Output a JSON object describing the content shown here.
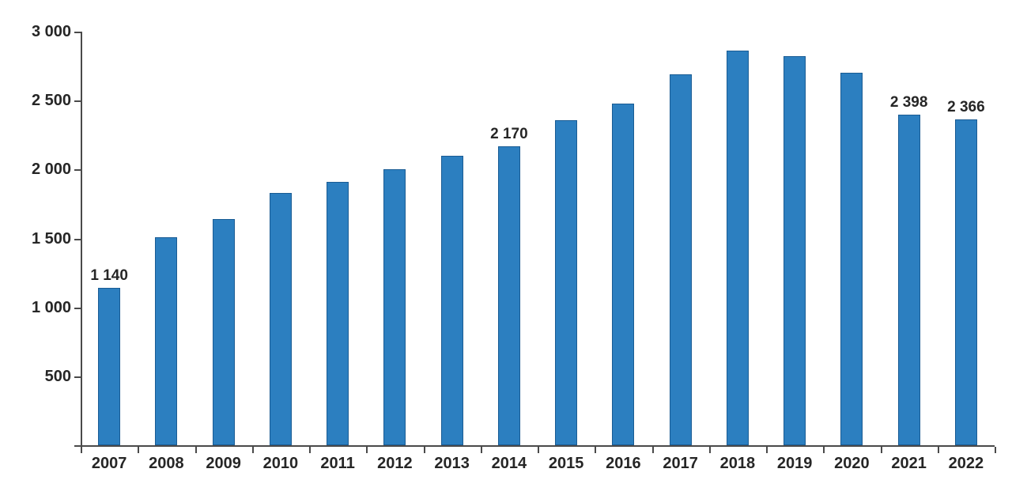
{
  "chart_data": {
    "type": "bar",
    "title": "",
    "xlabel": "",
    "ylabel": "",
    "categories": [
      "2007",
      "2008",
      "2009",
      "2010",
      "2011",
      "2012",
      "2013",
      "2014",
      "2015",
      "2016",
      "2017",
      "2018",
      "2019",
      "2020",
      "2021",
      "2022"
    ],
    "values": [
      1140,
      1510,
      1640,
      1830,
      1910,
      2000,
      2100,
      2170,
      2360,
      2480,
      2690,
      2860,
      2820,
      2700,
      2398,
      2366
    ],
    "data_labels": {
      "0": "1 140",
      "7": "2 170",
      "14": "2 398",
      "15": "2 366"
    },
    "ylim": [
      0,
      3000
    ],
    "ytick_values": [
      3000,
      2500,
      2000,
      1500,
      1000,
      500
    ],
    "ytick_labels": [
      "3 000",
      "2 500",
      "2 000",
      "1 500",
      "1 000",
      "500"
    ],
    "grid": false,
    "legend_position": "none",
    "bar_color": "#2c7fc0",
    "bar_border_color": "#1a5c94",
    "axis_color": "#4a4a4a",
    "text_color": "#262626"
  }
}
